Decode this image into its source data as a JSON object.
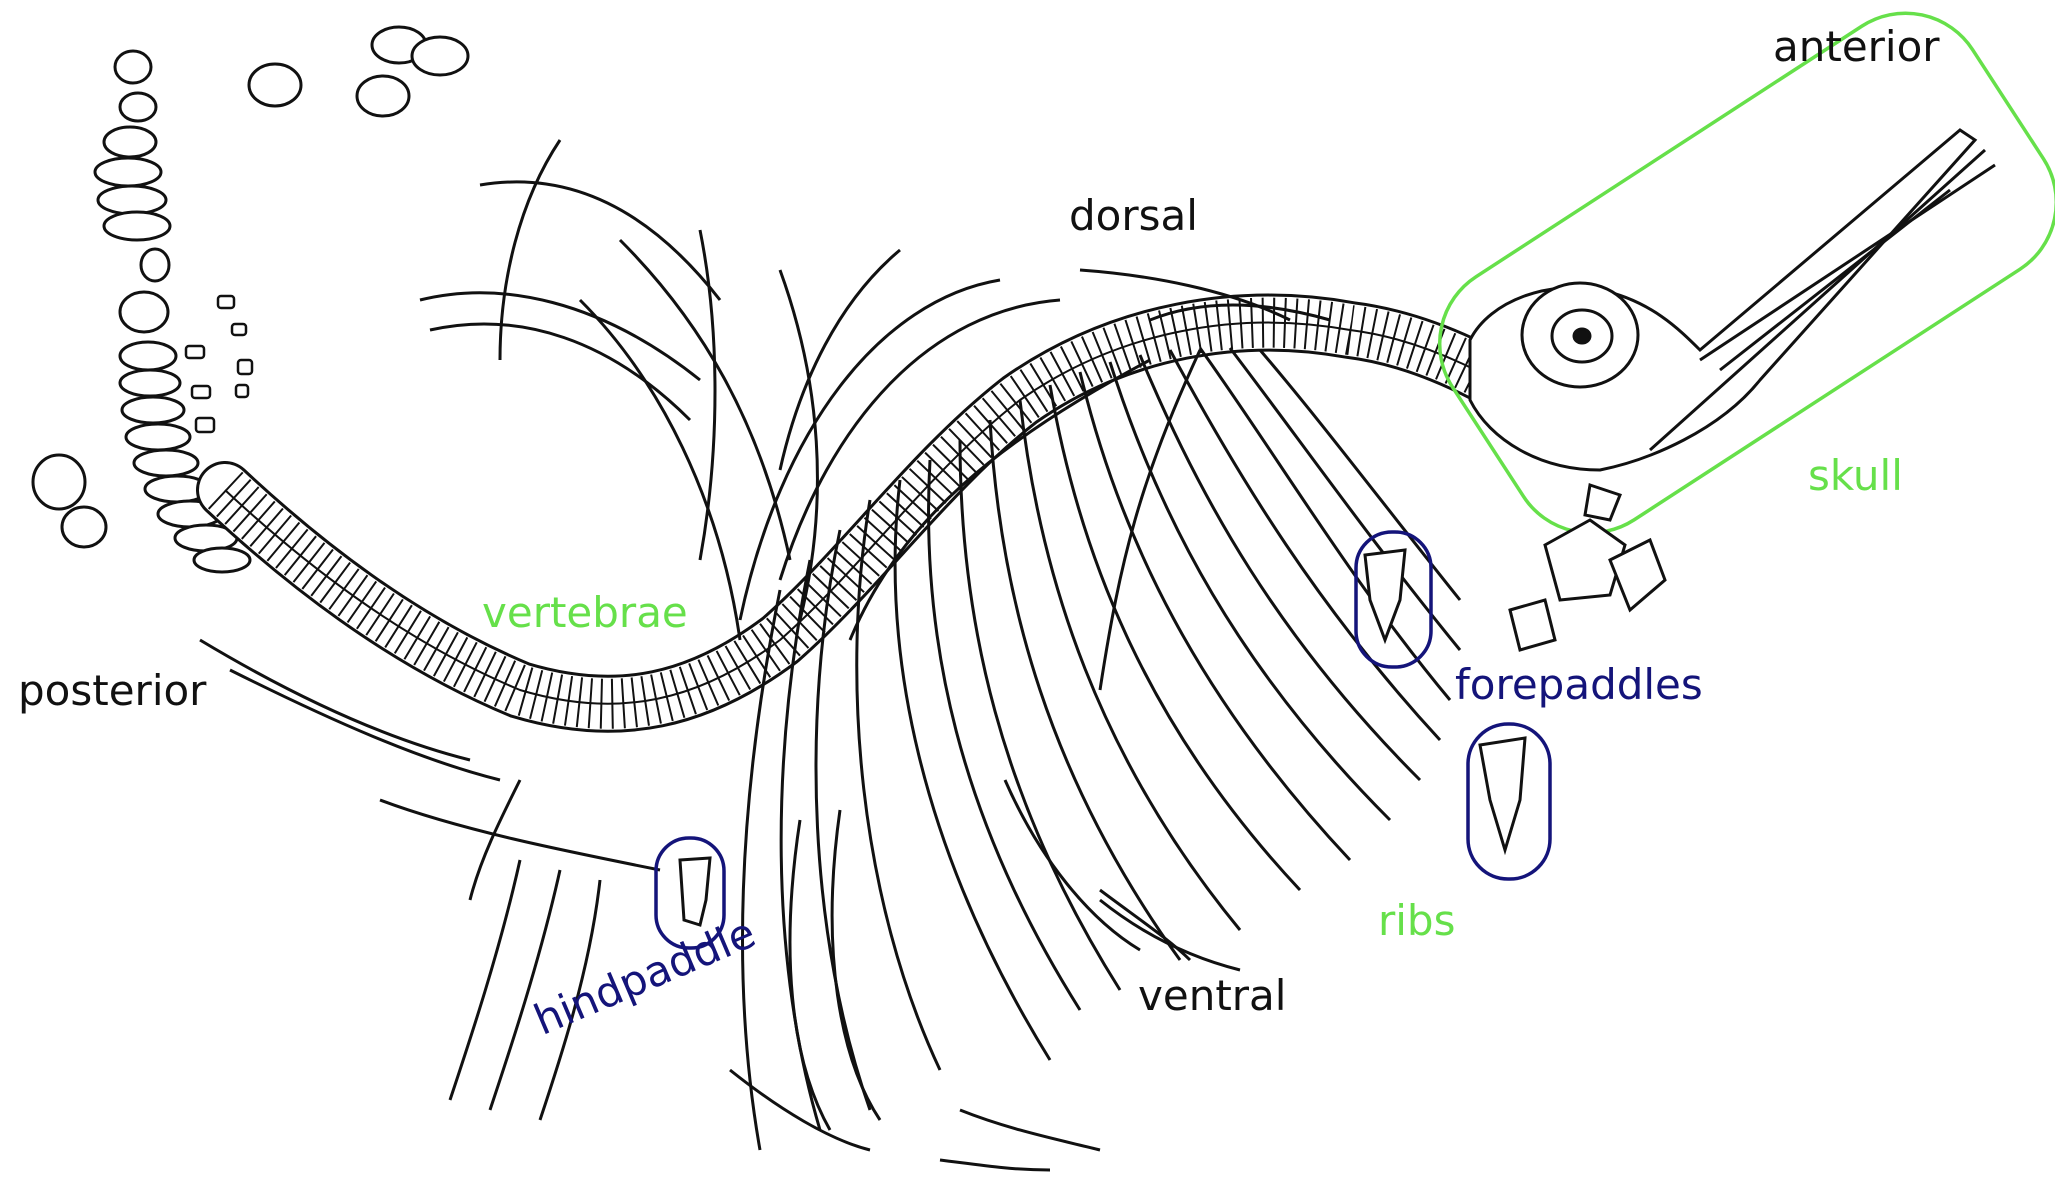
{
  "labels": {
    "anterior": "anterior",
    "dorsal": "dorsal",
    "skull": "skull",
    "vertebrae": "vertebrae",
    "posterior": "posterior",
    "forepaddles": "forepaddles",
    "ribs": "ribs",
    "ventral": "ventral",
    "hindpaddle": "hindpaddle"
  },
  "colors": {
    "structure_label": "#66e04a",
    "paddle_label": "#14147a",
    "direction_label": "#111111",
    "drawing": "#111111"
  }
}
